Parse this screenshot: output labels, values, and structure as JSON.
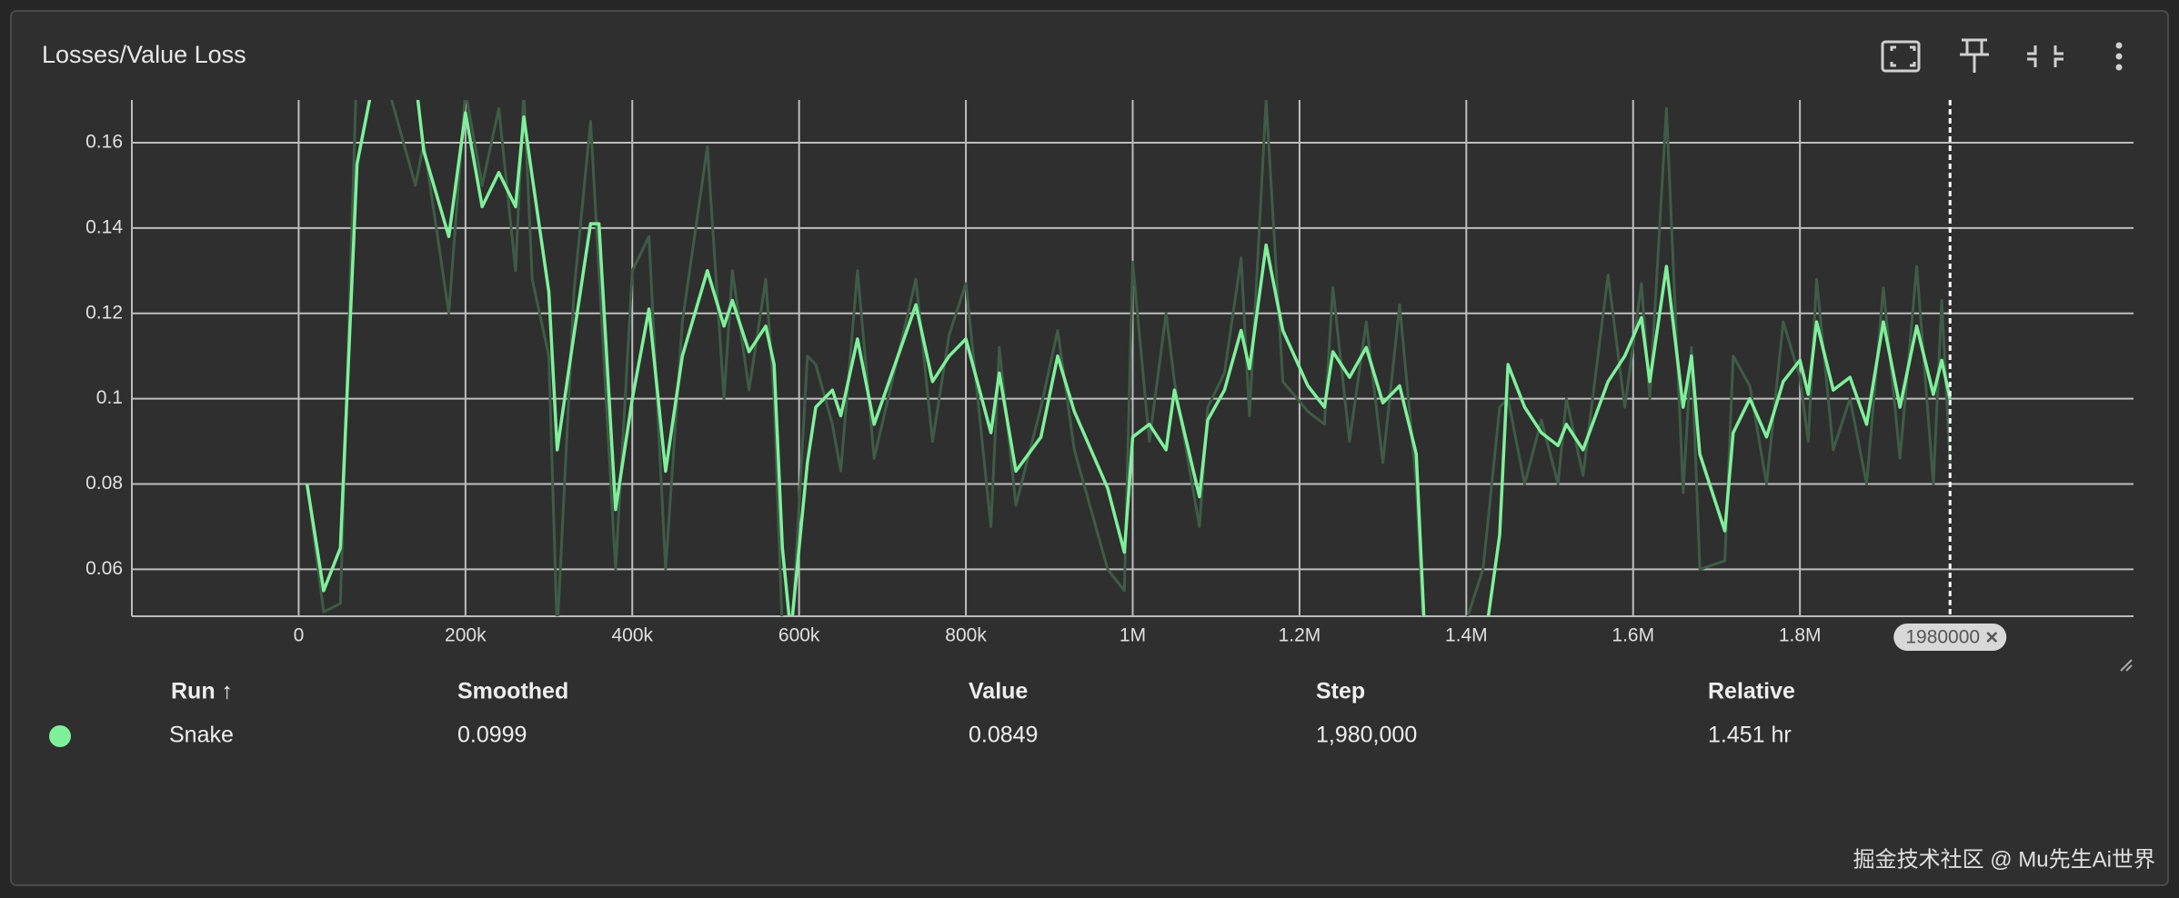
{
  "card": {
    "title": "Losses/Value Loss"
  },
  "chart_data": {
    "type": "line",
    "x": [
      10000,
      30000,
      50000,
      70000,
      90000,
      140000,
      150000,
      180000,
      200000,
      220000,
      240000,
      260000,
      270000,
      280000,
      300000,
      310000,
      330000,
      350000,
      360000,
      380000,
      400000,
      420000,
      440000,
      460000,
      490000,
      510000,
      520000,
      540000,
      560000,
      570000,
      580000,
      590000,
      610000,
      620000,
      640000,
      650000,
      670000,
      690000,
      740000,
      760000,
      780000,
      800000,
      830000,
      840000,
      860000,
      890000,
      910000,
      930000,
      970000,
      990000,
      1000000,
      1020000,
      1040000,
      1050000,
      1080000,
      1090000,
      1110000,
      1130000,
      1140000,
      1160000,
      1180000,
      1210000,
      1230000,
      1240000,
      1260000,
      1280000,
      1300000,
      1320000,
      1340000,
      1350000,
      1370000,
      1420000,
      1440000,
      1450000,
      1470000,
      1490000,
      1510000,
      1520000,
      1540000,
      1570000,
      1590000,
      1610000,
      1620000,
      1640000,
      1660000,
      1670000,
      1680000,
      1710000,
      1720000,
      1740000,
      1760000,
      1780000,
      1800000,
      1810000,
      1820000,
      1840000,
      1860000,
      1880000,
      1900000,
      1920000,
      1940000,
      1960000,
      1970000,
      1980000
    ],
    "series": [
      {
        "color": "#3e5c47",
        "values": [
          0.08,
          0.05,
          0.052,
          0.18,
          0.185,
          0.15,
          0.16,
          0.12,
          0.172,
          0.15,
          0.168,
          0.13,
          0.172,
          0.128,
          0.11,
          0.045,
          0.125,
          0.165,
          0.13,
          0.06,
          0.13,
          0.138,
          0.06,
          0.118,
          0.159,
          0.1,
          0.13,
          0.102,
          0.128,
          0.1,
          0.045,
          0.04,
          0.11,
          0.108,
          0.094,
          0.083,
          0.13,
          0.086,
          0.128,
          0.09,
          0.115,
          0.127,
          0.07,
          0.112,
          0.075,
          0.098,
          0.116,
          0.088,
          0.06,
          0.055,
          0.132,
          0.09,
          0.12,
          0.104,
          0.07,
          0.098,
          0.106,
          0.133,
          0.096,
          0.17,
          0.104,
          0.097,
          0.094,
          0.126,
          0.09,
          0.118,
          0.085,
          0.122,
          0.08,
          0.04,
          0.03,
          0.06,
          0.098,
          0.1,
          0.08,
          0.095,
          0.08,
          0.1,
          0.082,
          0.129,
          0.098,
          0.127,
          0.1,
          0.168,
          0.078,
          0.112,
          0.06,
          0.062,
          0.11,
          0.103,
          0.08,
          0.118,
          0.105,
          0.09,
          0.128,
          0.088,
          0.1,
          0.08,
          0.126,
          0.086,
          0.131,
          0.08,
          0.123,
          0.0849
        ]
      },
      {
        "name": "Snake",
        "color": "#7ff09a",
        "values": [
          0.08,
          0.055,
          0.065,
          0.155,
          0.175,
          0.175,
          0.158,
          0.138,
          0.167,
          0.145,
          0.153,
          0.145,
          0.166,
          0.152,
          0.125,
          0.088,
          0.115,
          0.141,
          0.141,
          0.074,
          0.1,
          0.121,
          0.083,
          0.11,
          0.13,
          0.117,
          0.123,
          0.111,
          0.117,
          0.108,
          0.065,
          0.045,
          0.085,
          0.098,
          0.102,
          0.096,
          0.114,
          0.094,
          0.122,
          0.104,
          0.11,
          0.114,
          0.092,
          0.106,
          0.083,
          0.091,
          0.11,
          0.097,
          0.079,
          0.064,
          0.091,
          0.094,
          0.088,
          0.102,
          0.077,
          0.095,
          0.102,
          0.116,
          0.107,
          0.136,
          0.116,
          0.103,
          0.098,
          0.111,
          0.105,
          0.112,
          0.099,
          0.103,
          0.087,
          0.045,
          0.035,
          0.04,
          0.068,
          0.108,
          0.098,
          0.092,
          0.089,
          0.094,
          0.088,
          0.104,
          0.11,
          0.119,
          0.104,
          0.131,
          0.098,
          0.11,
          0.087,
          0.069,
          0.092,
          0.1,
          0.091,
          0.104,
          0.109,
          0.101,
          0.118,
          0.102,
          0.105,
          0.094,
          0.118,
          0.098,
          0.117,
          0.101,
          0.109,
          0.0999
        ]
      }
    ],
    "xlim": [
      -200000,
      2200000
    ],
    "xticks": [
      0,
      {
        "value": 200000,
        "label": "200k"
      },
      {
        "value": 400000,
        "label": "400k"
      },
      {
        "value": 600000,
        "label": "600k"
      },
      {
        "value": 800000,
        "label": "800k"
      },
      {
        "value": 1000000,
        "label": "1M"
      },
      {
        "value": 1200000,
        "label": "1.2M"
      },
      {
        "value": 1400000,
        "label": "1.4M"
      },
      {
        "value": 1600000,
        "label": "1.6M"
      },
      {
        "value": 1800000,
        "label": "1.8M"
      }
    ],
    "ylim": [
      0.049,
      0.17
    ],
    "yticks": [
      0.06,
      0.08,
      0.1,
      0.12,
      0.14,
      0.16
    ],
    "grid": true,
    "cursor_x": 1980000
  },
  "table": {
    "headers": [
      "Run ↑",
      "Smoothed",
      "Value",
      "Step",
      "Relative"
    ],
    "rows": [
      [
        "Snake",
        "0.0999",
        "0.0849",
        "1,980,000",
        "1.451 hr"
      ]
    ]
  },
  "watermark": "掘金技术社区 @ Mu先生Ai世界"
}
